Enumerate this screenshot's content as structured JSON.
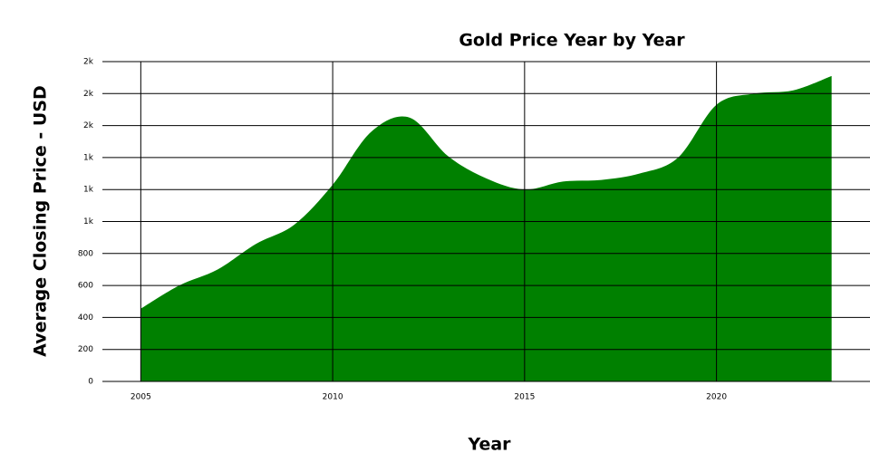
{
  "chart_data": {
    "type": "area",
    "title": "Gold Price Year by Year",
    "x_label": "Year",
    "y_label": "Average Closing Price - USD",
    "x": [
      2005,
      2006,
      2007,
      2008,
      2009,
      2010,
      2011,
      2012,
      2013,
      2014,
      2015,
      2016,
      2017,
      2018,
      2019,
      2020,
      2021,
      2022,
      2023
    ],
    "values": [
      455,
      600,
      700,
      860,
      980,
      1230,
      1560,
      1650,
      1410,
      1270,
      1200,
      1250,
      1260,
      1300,
      1400,
      1730,
      1800,
      1820,
      1910
    ],
    "color": "#008000",
    "xlim": [
      2004,
      2024
    ],
    "xticks": [
      2005,
      2010,
      2015,
      2020
    ],
    "ylim": [
      0,
      2000
    ],
    "yticks": [
      0,
      200,
      400,
      600,
      800,
      {
        "value": 1000,
        "label": "1k"
      },
      {
        "value": 1200,
        "label": "1k"
      },
      {
        "value": 1400,
        "label": "1k"
      },
      {
        "value": 1600,
        "label": "2k"
      },
      {
        "value": 1800,
        "label": "2k"
      },
      {
        "value": 2000,
        "label": "2k"
      }
    ],
    "grid": true
  }
}
